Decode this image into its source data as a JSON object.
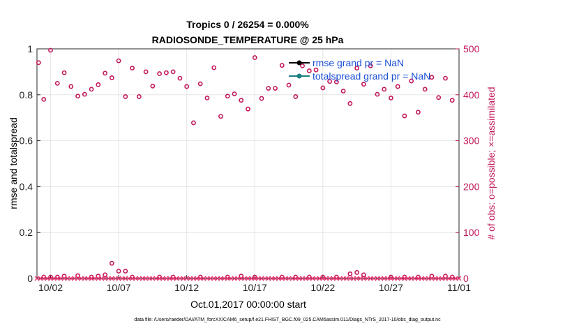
{
  "chart_data": {
    "type": "scatter",
    "title_line1": "Tropics 0 / 26254 = 0.000%",
    "title_line2": "RADIOSONDE_TEMPERATURE @ 25 hPa",
    "xlabel": "Oct.01,2017 00:00:00 start",
    "ylabel_left": "rmse and totalspread",
    "ylabel_right": "# of obs: o=possible; ×=assimilated",
    "xlim": [
      0,
      31
    ],
    "ylim_left": [
      0,
      1
    ],
    "ylim_right": [
      0,
      500
    ],
    "x_tick_values": [
      1,
      6,
      11,
      16,
      21,
      26,
      31
    ],
    "x_tick_labels": [
      "10/02",
      "10/07",
      "10/12",
      "10/17",
      "10/22",
      "10/27",
      "11/01"
    ],
    "y_left_ticks": [
      0,
      0.2,
      0.4,
      0.6,
      0.8,
      1
    ],
    "y_left_tick_labels": [
      "0",
      "0.2",
      "0.4",
      "0.6",
      "0.8",
      "1"
    ],
    "y_right_ticks": [
      0,
      100,
      200,
      300,
      400,
      500
    ],
    "y_right_tick_labels": [
      "0",
      "100",
      "200",
      "300",
      "400",
      "500"
    ],
    "grid": true,
    "legend": [
      {
        "label": "rmse grand pr = NaN",
        "color": "#000000"
      },
      {
        "label": "totalspread grand pr = NaN",
        "color": "#1a8080"
      }
    ],
    "legend_position": "top-right",
    "series": [
      {
        "name": "possible (upper)",
        "marker": "circle",
        "color": "#c2185b",
        "x": [
          0.12,
          0.5,
          1.0,
          1.5,
          2.0,
          2.5,
          3.0,
          3.5,
          4.0,
          4.5,
          5.0,
          5.5,
          6.0,
          6.5,
          7.0,
          7.5,
          8.0,
          8.5,
          9.0,
          9.5,
          10.0,
          10.5,
          11.0,
          11.5,
          12.0,
          12.5,
          13.0,
          13.5,
          14.0,
          14.5,
          15.0,
          15.5,
          16.0,
          16.5,
          17.0,
          17.5,
          18.0,
          18.5,
          19.0,
          19.5,
          20.0,
          20.5,
          21.0,
          21.5,
          22.0,
          22.5,
          23.0,
          23.5,
          24.0,
          24.5,
          25.0,
          25.5,
          26.0,
          26.5,
          27.0,
          27.5,
          28.0,
          28.5,
          29.0,
          29.5,
          30.0,
          30.5
        ],
        "y": [
          470,
          390,
          497,
          425,
          448,
          418,
          397,
          401,
          412,
          422,
          447,
          437,
          474,
          396,
          458,
          396,
          450,
          419,
          446,
          448,
          450,
          436,
          418,
          339,
          424,
          393,
          459,
          353,
          397,
          402,
          388,
          369,
          481,
          392,
          414,
          414,
          464,
          421,
          396,
          463,
          452,
          454,
          415,
          429,
          428,
          408,
          381,
          458,
          423,
          463,
          401,
          412,
          393,
          418,
          354,
          430,
          362,
          412,
          438,
          394,
          436,
          388
        ]
      },
      {
        "name": "possible (lower)",
        "marker": "circle",
        "color": "#c2185b",
        "x": [
          0.5,
          1.0,
          1.5,
          2.0,
          3.0,
          4.0,
          4.5,
          5.0,
          5.5,
          6.0,
          6.5,
          7.0,
          9.0,
          10.0,
          12.0,
          14.0,
          15.0,
          16.0,
          18.0,
          19.0,
          20.0,
          21.0,
          22.0,
          23.0,
          23.5,
          24.0,
          26.0,
          27.0,
          28.0,
          29.0,
          30.0,
          30.5
        ],
        "y": [
          3,
          3,
          3,
          5,
          6,
          3,
          5,
          8,
          33,
          16,
          16,
          3,
          3,
          3,
          3,
          3,
          5,
          3,
          3,
          3,
          3,
          3,
          3,
          10,
          13,
          8,
          3,
          3,
          3,
          5,
          5,
          3
        ]
      },
      {
        "name": "assimilated",
        "marker": "x",
        "color": "#e8316e",
        "x": [
          0.0,
          0.25,
          0.5,
          0.75,
          1.0,
          1.25,
          1.5,
          1.75,
          2.0,
          2.25,
          2.5,
          2.75,
          3.0,
          3.25,
          3.5,
          3.75,
          4.0,
          4.25,
          4.5,
          4.75,
          5.0,
          5.25,
          5.5,
          5.75,
          6.0,
          6.25,
          6.5,
          6.75,
          7.0,
          7.25,
          7.5,
          7.75,
          8.0,
          8.25,
          8.5,
          8.75,
          9.0,
          9.25,
          9.5,
          9.75,
          10.0,
          10.25,
          10.5,
          10.75,
          11.0,
          11.25,
          11.5,
          11.75,
          12.0,
          12.25,
          12.5,
          12.75,
          13.0,
          13.25,
          13.5,
          13.75,
          14.0,
          14.25,
          14.5,
          14.75,
          15.0,
          15.25,
          15.5,
          15.75,
          16.0,
          16.25,
          16.5,
          16.75,
          17.0,
          17.25,
          17.5,
          17.75,
          18.0,
          18.25,
          18.5,
          18.75,
          19.0,
          19.25,
          19.5,
          19.75,
          20.0,
          20.25,
          20.5,
          20.75,
          21.0,
          21.25,
          21.5,
          21.75,
          22.0,
          22.25,
          22.5,
          22.75,
          23.0,
          23.25,
          23.5,
          23.75,
          24.0,
          24.25,
          24.5,
          24.75,
          25.0,
          25.25,
          25.5,
          25.75,
          26.0,
          26.25,
          26.5,
          26.75,
          27.0,
          27.25,
          27.5,
          27.75,
          28.0,
          28.25,
          28.5,
          28.75,
          29.0,
          29.25,
          29.5,
          29.75,
          30.0,
          30.25,
          30.5,
          30.75,
          31.0
        ],
        "y": [
          0,
          0,
          0,
          0,
          0,
          0,
          0,
          0,
          0,
          0,
          0,
          0,
          0,
          0,
          0,
          0,
          0,
          0,
          0,
          0,
          0,
          0,
          0,
          0,
          0,
          0,
          0,
          0,
          0,
          0,
          0,
          0,
          0,
          0,
          0,
          0,
          0,
          0,
          0,
          0,
          0,
          0,
          0,
          0,
          0,
          0,
          0,
          0,
          0,
          0,
          0,
          0,
          0,
          0,
          0,
          0,
          0,
          0,
          0,
          0,
          0,
          0,
          0,
          0,
          0,
          0,
          0,
          0,
          0,
          0,
          0,
          0,
          0,
          0,
          0,
          0,
          0,
          0,
          0,
          0,
          0,
          0,
          0,
          0,
          0,
          0,
          0,
          0,
          0,
          0,
          0,
          0,
          0,
          0,
          0,
          0,
          0,
          0,
          0,
          0,
          0,
          0,
          0,
          0,
          0,
          0,
          0,
          0,
          0,
          0,
          0,
          0,
          0,
          0,
          0,
          0,
          0,
          0,
          0,
          0,
          0,
          0,
          0,
          0,
          0
        ]
      }
    ],
    "footnote": "data file: /Users/raeder/DAI/ATM_forcXX/CAM6_setup/f.e21.FHIST_BGC.f09_025.CAM6assim.011/Diags_NTrS_2017-10/obs_diag_output.nc"
  }
}
